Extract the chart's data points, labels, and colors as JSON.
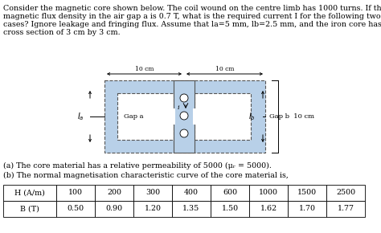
{
  "paragraph_line1": "Consider the magnetic core shown below. The coil wound on the centre limb has 1000 turns. If the",
  "paragraph_line2": "magnetic flux density in the air gap a is 0.7 T, what is the required current I for the following two",
  "paragraph_line3": "cases? Ignore leakage and fringing flux. Assume that la=5 mm, lb=2.5 mm, and the iron core has a",
  "paragraph_line4": "cross section of 3 cm by 3 cm.",
  "part_a": "(a) The core material has a relative permeability of 5000 (μᵣ = 5000).",
  "part_b": "(b) The normal magnetisation characteristic curve of the core material is,",
  "H_label": "H (A/m)",
  "B_label": "B (T)",
  "H_values": [
    "100",
    "200",
    "300",
    "400",
    "600",
    "1000",
    "1500",
    "2500"
  ],
  "B_values": [
    "0.50",
    "0.90",
    "1.20",
    "1.35",
    "1.50",
    "1.62",
    "1.70",
    "1.77"
  ],
  "bg_color": "#ffffff",
  "core_fill": "#b8d0e8",
  "core_edge": "#555555",
  "inner_fill": "#ffffff",
  "dim_10cm_1": "10 cm",
  "dim_10cm_2": "10 cm",
  "gap_a_label": "Gap a",
  "gap_b_label": "Gap b  10 cm"
}
